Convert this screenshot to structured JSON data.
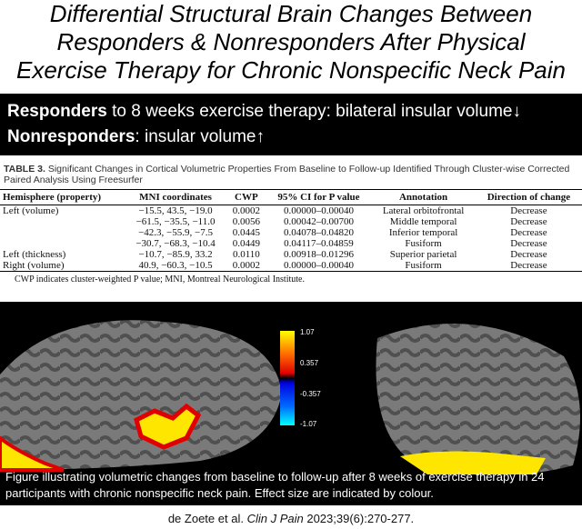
{
  "header": {
    "title": [
      "Differential Structural Brain Changes Between",
      "Responders & Nonresponders After Physical",
      "Exercise Therapy for Chronic Nonspecific Neck Pain"
    ]
  },
  "summary": {
    "responders_label": "Responders",
    "responders_text": "to 8 weeks exercise therapy: bilateral insular volume↓",
    "nonresponders_label": "Nonresponders",
    "nonresponders_text": ": insular volume↑"
  },
  "table": {
    "label": "TABLE 3.",
    "caption": "Significant Changes in Cortical Volumetric Properties From Baseline to Follow-up Identified Through Cluster-wise Corrected Paired Analysis Using Freesurfer",
    "columns": [
      "Hemisphere (property)",
      "MNI coordinates",
      "CWP",
      "95% CI for P value",
      "Annotation",
      "Direction of change"
    ],
    "rows": [
      [
        "Left (volume)",
        "−15.5, 43.5, −19.0",
        "0.0002",
        "0.00000–0.00040",
        "Lateral orbitofrontal",
        "Decrease"
      ],
      [
        null,
        "−61.5, −35.5, −11.0",
        "0.0056",
        "0.00042–0.00700",
        "Middle temporal",
        "Decrease"
      ],
      [
        null,
        "−42.3, −55.9, −7.5",
        "0.0445",
        "0.04078–0.04820",
        "Inferior temporal",
        "Decrease"
      ],
      [
        null,
        "−30.7, −68.3, −10.4",
        "0.0449",
        "0.04117–0.04859",
        "Fusiform",
        "Decrease"
      ],
      [
        "Left (thickness)",
        "−10.7, −85.9, 33.2",
        "0.0110",
        "0.00918–0.01296",
        "Superior parietal",
        "Decrease"
      ],
      [
        "Right (volume)",
        "40.9, −60.3, −10.5",
        "0.0002",
        "0.00000–0.00040",
        "Fusiform",
        "Decrease"
      ]
    ],
    "footnote": "CWP indicates cluster-weighted P value; MNI, Montreal Neurological Institute."
  },
  "figure": {
    "colorbar_labels": [
      "1.07",
      "0.357",
      "-0.357",
      "-1.07"
    ],
    "caption": "Figure illustrating volumetric changes from baseline to follow-up after 8 weeks of exercise therapy in 24 participants with chronic nonspecific neck pain. Effect size are indicated by colour."
  },
  "citation": {
    "authors": "de Zoete et al.",
    "journal": "Clin J Pain",
    "details": "2023;39(6):270-277."
  }
}
